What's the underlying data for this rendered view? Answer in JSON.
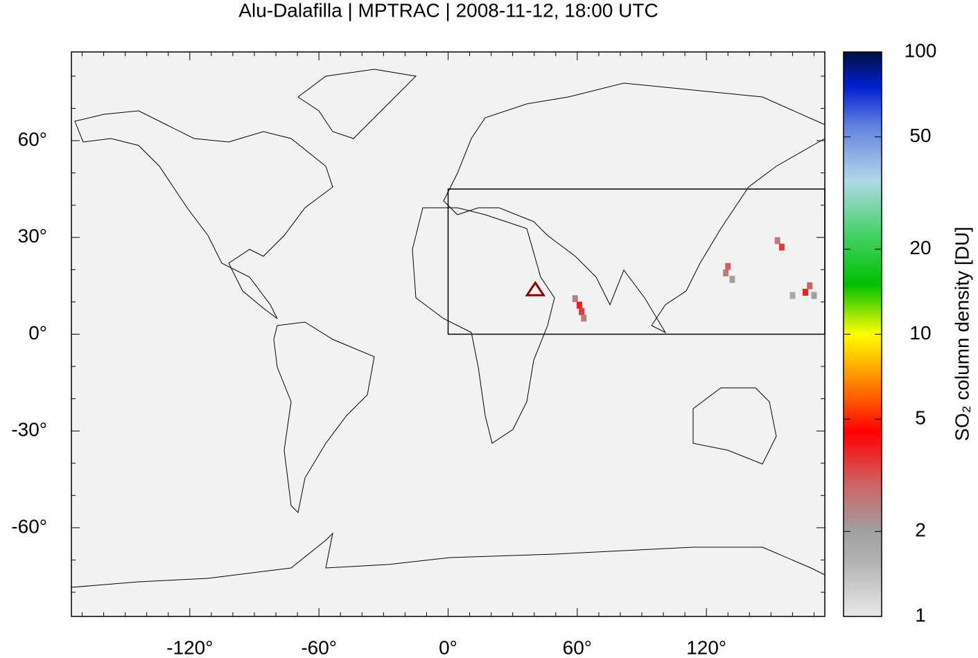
{
  "chart_data": {
    "type": "map",
    "title": "Alu-Dalafilla | MPTRAC | 2008-11-12, 18:00 UTC",
    "xlim": [
      -175,
      175
    ],
    "ylim": [
      -87.5,
      87.5
    ],
    "xticks": [
      {
        "value": -120,
        "label": "-120°"
      },
      {
        "value": -60,
        "label": "-60°"
      },
      {
        "value": 0,
        "label": "0°"
      },
      {
        "value": 60,
        "label": "60°"
      },
      {
        "value": 120,
        "label": "120°"
      }
    ],
    "yticks": [
      {
        "value": -60,
        "label": "-60°"
      },
      {
        "value": -30,
        "label": "-30°"
      },
      {
        "value": 0,
        "label": "0°"
      },
      {
        "value": 30,
        "label": "30°"
      },
      {
        "value": 60,
        "label": "60°"
      }
    ],
    "xminorticks": [
      -170,
      -160,
      -150,
      -140,
      -130,
      -110,
      -100,
      -90,
      -80,
      -70,
      -50,
      -40,
      -30,
      -20,
      -10,
      10,
      20,
      30,
      40,
      50,
      70,
      80,
      90,
      100,
      110,
      130,
      140,
      150,
      160,
      170
    ],
    "yminorticks": [
      -80,
      -70,
      -50,
      -40,
      -20,
      -10,
      10,
      20,
      40,
      50,
      70,
      80
    ],
    "background": "#f2f2f2",
    "box": {
      "x": [
        0,
        175
      ],
      "y": [
        0,
        45
      ]
    },
    "marker": {
      "x": 40.5,
      "y": 13.8,
      "color": "#8b0000"
    },
    "plume": {
      "x": [
        59,
        61,
        62,
        63,
        129,
        130,
        132,
        153,
        155,
        160,
        166,
        168,
        170
      ],
      "y": [
        11,
        9,
        7,
        5,
        19,
        21,
        17,
        29,
        27,
        12,
        13,
        15,
        12
      ],
      "values": [
        2.5,
        4,
        3.5,
        2.5,
        2.5,
        3,
        2,
        2.5,
        3.5,
        1.8,
        4,
        3,
        2
      ]
    },
    "colorbar": {
      "label": "SO₂ column density [DU]",
      "log": true,
      "lim": [
        1,
        100
      ],
      "ticks": [
        1,
        2,
        5,
        10,
        20,
        50,
        100
      ],
      "stops": [
        {
          "value": 1,
          "color": "#e8e8e8"
        },
        {
          "value": 1.6,
          "color": "#b0b0b0"
        },
        {
          "value": 2,
          "color": "#a0a0a0"
        },
        {
          "value": 3,
          "color": "#d06060"
        },
        {
          "value": 4.5,
          "color": "#ff0000"
        },
        {
          "value": 6,
          "color": "#ff6000"
        },
        {
          "value": 10,
          "color": "#ffff00"
        },
        {
          "value": 15,
          "color": "#00c000"
        },
        {
          "value": 22,
          "color": "#40d060"
        },
        {
          "value": 35,
          "color": "#b0d8e8"
        },
        {
          "value": 55,
          "color": "#6080e0"
        },
        {
          "value": 75,
          "color": "#0020d0"
        },
        {
          "value": 100,
          "color": "#001040"
        }
      ]
    }
  }
}
